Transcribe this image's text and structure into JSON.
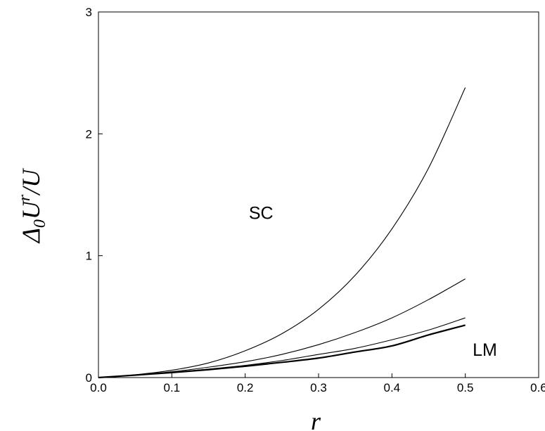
{
  "chart_data": {
    "type": "line",
    "title": "",
    "xlabel": "r",
    "ylabel": {
      "base": "Δ",
      "sub": "0",
      "main": "U",
      "sup": "r",
      "tail": "/U"
    },
    "xlim": [
      0.0,
      0.6
    ],
    "ylim": [
      0,
      3
    ],
    "xticks": [
      0.0,
      0.1,
      0.2,
      0.3,
      0.4,
      0.5,
      0.6
    ],
    "xtick_labels": [
      "0.0",
      "0.1",
      "0.2",
      "0.3",
      "0.4",
      "0.5",
      "0.6"
    ],
    "yticks": [
      0,
      1,
      2,
      3
    ],
    "ytick_labels": [
      "0",
      "1",
      "2",
      "3"
    ],
    "grid": false,
    "x": [
      0.0,
      0.05,
      0.1,
      0.15,
      0.2,
      0.25,
      0.3,
      0.35,
      0.4,
      0.45,
      0.5
    ],
    "series": [
      {
        "values": [
          0,
          0.023,
          0.06,
          0.12,
          0.22,
          0.36,
          0.56,
          0.84,
          1.22,
          1.72,
          2.38
        ]
      },
      {
        "values": [
          0,
          0.021,
          0.048,
          0.085,
          0.13,
          0.19,
          0.27,
          0.37,
          0.49,
          0.64,
          0.81
        ]
      },
      {
        "values": [
          0,
          0.02,
          0.042,
          0.07,
          0.1,
          0.14,
          0.19,
          0.24,
          0.31,
          0.39,
          0.49
        ]
      },
      {
        "values": [
          0,
          0.02,
          0.041,
          0.065,
          0.093,
          0.125,
          0.16,
          0.21,
          0.26,
          0.35,
          0.43
        ],
        "bold": true
      }
    ],
    "annotations": [
      {
        "text": "SC",
        "x": 0.205,
        "y": 1.3
      },
      {
        "text": "LM",
        "x": 0.51,
        "y": 0.18
      }
    ],
    "colors": {
      "line": "#000000",
      "axis": "#000000"
    }
  }
}
